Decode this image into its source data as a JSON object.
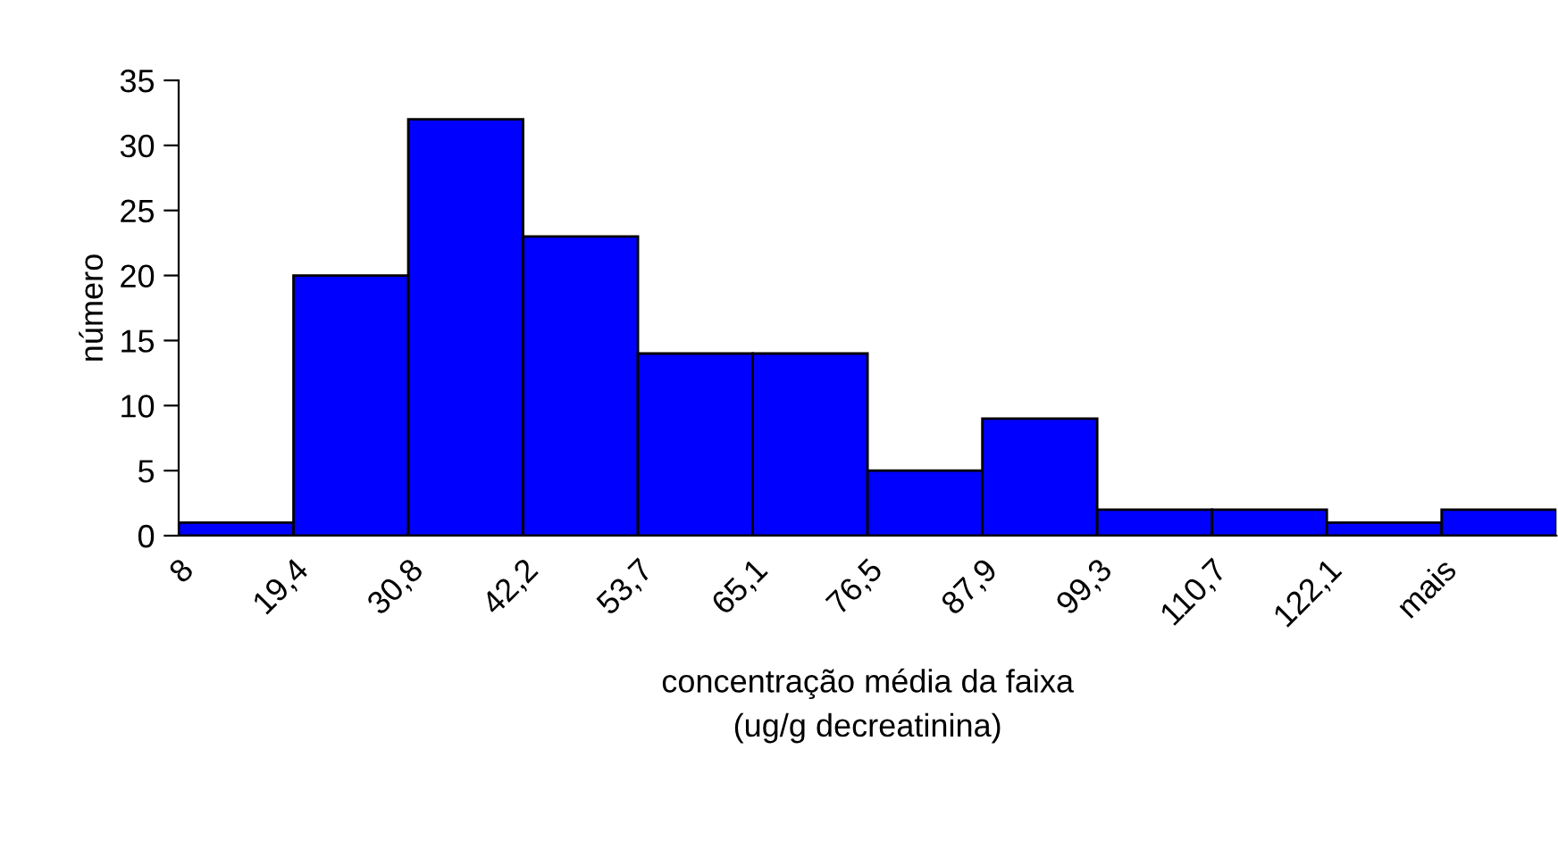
{
  "chart_data": {
    "type": "bar",
    "xlabel": "concentração média da faixa\n(ug/g decreatinina)",
    "ylabel": "número",
    "categories": [
      "8",
      "19,4",
      "30,8",
      "42,2",
      "53,7",
      "65,1",
      "76,5",
      "87,9",
      "99,3",
      "110,7",
      "122,1",
      "mais"
    ],
    "values": [
      1,
      20,
      32,
      23,
      14,
      14,
      5,
      9,
      2,
      2,
      1,
      2
    ],
    "color": "#0000ff",
    "ylim": [
      0,
      35
    ],
    "yticks": [
      0,
      5,
      10,
      15,
      20,
      25,
      30,
      35
    ],
    "grid": false,
    "legend": false
  }
}
